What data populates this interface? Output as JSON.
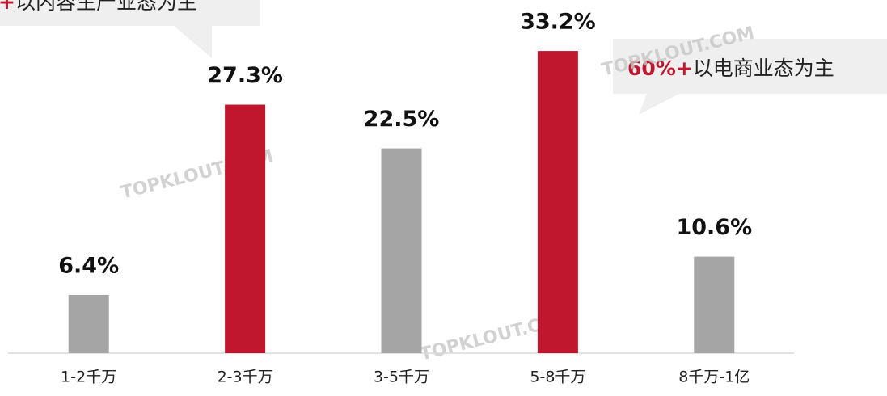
{
  "chart_data": {
    "type": "bar",
    "categories": [
      "1-2千万",
      "2-3千万",
      "3-5千万",
      "5-8千万",
      "8千万-1亿"
    ],
    "values": [
      6.4,
      27.3,
      22.5,
      33.2,
      10.6
    ],
    "value_labels": [
      "6.4%",
      "27.3%",
      "22.5%",
      "33.2%",
      "10.6%"
    ],
    "colors": [
      "#a5a5a5",
      "#c0172f",
      "#a5a5a5",
      "#c0172f",
      "#a5a5a5"
    ],
    "ylim": [
      0,
      38.8
    ],
    "annotations": [
      {
        "highlight": "+",
        "text": "以内容生产业态为主"
      },
      {
        "highlight": "60%+",
        "text": "以电商业态为主"
      }
    ],
    "watermark": "TOPKLOUT.COM"
  }
}
